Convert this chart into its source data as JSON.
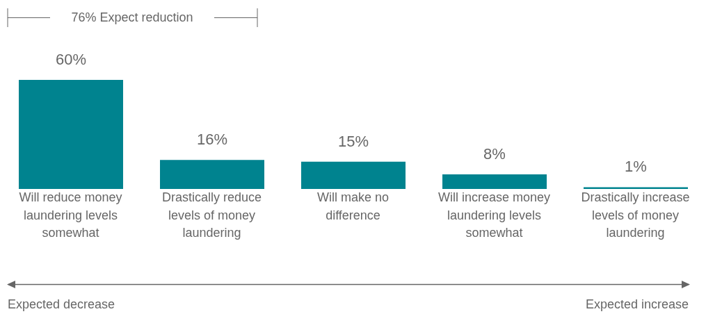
{
  "chart_data": {
    "type": "bar",
    "categories": [
      "Will reduce money laundering levels somewhat",
      "Drastically reduce levels of money laundering",
      "Will make no difference",
      "Will increase money laundering levels somewhat",
      "Drastically increase levels of money laundering"
    ],
    "values": [
      60,
      16,
      15,
      8,
      1
    ],
    "color": "#00838f",
    "data_labels": true,
    "value_labels": [
      "60%",
      "16%",
      "15%",
      "8%",
      "1%"
    ],
    "grid": false,
    "legend": false,
    "annotations": [
      "76% Expect reduction",
      "Expected decrease",
      "Expected increase"
    ]
  }
}
